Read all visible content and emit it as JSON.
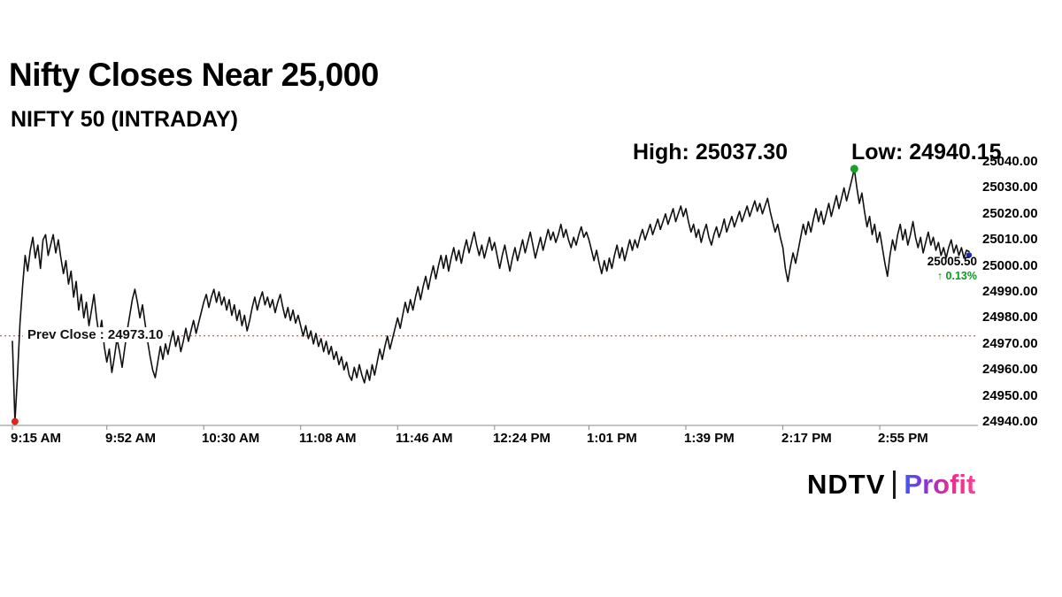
{
  "header": {
    "title": "Nifty Closes Near 25,000",
    "subtitle": "NIFTY 50 (INTRADAY)"
  },
  "stats": {
    "high_label": "High: 25037.30",
    "low_label": "Low: 24940.15"
  },
  "chart_data": {
    "type": "line",
    "title": "NIFTY 50 (INTRADAY)",
    "x_unit": "minutes since 09:15 AM",
    "x_ticks": [
      "9:15 AM",
      "9:52 AM",
      "10:30 AM",
      "11:08 AM",
      "11:46 AM",
      "12:24 PM",
      "1:01 PM",
      "1:39 PM",
      "2:17 PM",
      "2:55 PM"
    ],
    "x_tick_minutes": [
      0,
      37,
      75,
      113,
      151,
      189,
      226,
      264,
      302,
      340
    ],
    "xlim_minutes": [
      0,
      375
    ],
    "y_ticks": [
      25040,
      25030,
      25020,
      25010,
      25000,
      24990,
      24980,
      24970,
      24960,
      24950,
      24940
    ],
    "y_tick_labels": [
      "25040.00",
      "25030.00",
      "25020.00",
      "25010.00",
      "25000.00",
      "24990.00",
      "24980.00",
      "24970.00",
      "24960.00",
      "24950.00",
      "24940.00"
    ],
    "ylim": [
      24940,
      25040
    ],
    "grid": false,
    "high": 25037.3,
    "low": 24940.15,
    "prev_close": 24973.1,
    "prev_close_label": "Prev Close : 24973.10",
    "last_price": 25005.5,
    "last_price_label": "25005.50",
    "change_label": "↑ 0.13%",
    "colors": {
      "line": "#111111",
      "prev_close_line": "#dd6a5c",
      "axis": "#8a8a8a",
      "change_up": "#0a9b1d",
      "low_marker": "#e1251b",
      "high_marker": "#17a02b",
      "last_marker": "#1b2bb0"
    },
    "series": [
      {
        "name": "NIFTY 50",
        "minute_step": 1,
        "prices": [
          24971,
          24940.15,
          24958,
          24978,
          24992,
          25004,
          24998,
          25006,
          25011,
          25003,
          25008,
          24999,
          25010,
          25012,
          25004,
          25008,
          25012,
          25005,
          25010,
          25003,
          24997,
          25002,
          24993,
          24998,
          24988,
          24994,
          24983,
          24989,
          24980,
          24986,
          24977,
          24983,
          24989,
          24980,
          24973,
          24979,
          24969,
          24963,
          24968,
          24959,
          24965,
          24972,
          24967,
          24961,
          24968,
          24975,
          24981,
          24987,
          24991,
          24986,
          24980,
          24985,
          24978,
          24971,
          24965,
          24960,
          24957,
          24963,
          24969,
          24964,
          24970,
          24966,
          24971,
          24975,
          24969,
          24973,
          24967,
          24971,
          24976,
          24971,
          24975,
          24979,
          24974,
          24978,
          24982,
          24986,
          24989,
          24984,
          24988,
          24991,
          24986,
          24990,
          24985,
          24988,
          24983,
          24987,
          24981,
          24985,
          24979,
          24983,
          24977,
          24981,
          24975,
          24979,
          24984,
          24988,
          24983,
          24987,
          24990,
          24985,
          24988,
          24984,
          24987,
          24982,
          24986,
          24989,
          24984,
          24980,
          24984,
          24979,
          24983,
          24978,
          24981,
          24977,
          24973,
          24977,
          24972,
          24975,
          24970,
          24974,
          24969,
          24972,
          24967,
          24971,
          24966,
          24969,
          24964,
          24967,
          24962,
          24965,
          24960,
          24963,
          24958,
          24956,
          24961,
          24957,
          24962,
          24958,
          24955,
          24960,
          24956,
          24962,
          24958,
          24963,
          24968,
          24964,
          24969,
          24973,
          24968,
          24972,
          24976,
          24980,
          24976,
          24981,
          24986,
          24982,
          24987,
          24983,
          24988,
          24992,
          24987,
          24992,
          24996,
          24991,
          24996,
          25000,
          24995,
          25000,
          25004,
          24999,
          25004,
          24998,
          25003,
          25007,
          25002,
          25006,
          25001,
          25006,
          25010,
          25005,
          25009,
          25013,
          25008,
          25004,
          25008,
          25003,
          25007,
          25011,
          25006,
          25009,
          25004,
          24999,
          25004,
          25008,
          25003,
          24998,
          25003,
          25007,
          25002,
          25006,
          25010,
          25005,
          25009,
          25013,
          25008,
          25003,
          25007,
          25011,
          25006,
          25010,
          25014,
          25010,
          25013,
          25009,
          25012,
          25016,
          25011,
          25014,
          25010,
          25007,
          25011,
          25008,
          25012,
          25015,
          25011,
          25013,
          25010,
          25006,
          25002,
          25006,
          25001,
          24997,
          25002,
          24998,
          25003,
          24999,
          25004,
          25008,
          25003,
          25007,
          25002,
          25006,
          25010,
          25006,
          25010,
          25007,
          25011,
          25014,
          25010,
          25013,
          25016,
          25012,
          25015,
          25018,
          25014,
          25017,
          25020,
          25016,
          25019,
          25022,
          25017,
          25020,
          25023,
          25019,
          25022,
          25017,
          25013,
          25016,
          25011,
          25014,
          25009,
          25013,
          25016,
          25011,
          25008,
          25012,
          25015,
          25011,
          25014,
          25018,
          25013,
          25016,
          25019,
          25015,
          25018,
          25021,
          25017,
          25020,
          25023,
          25019,
          25022,
          25025,
          25021,
          25024,
          25020,
          25023,
          25026,
          25021,
          25017,
          25013,
          25016,
          25011,
          25007,
          24999,
          24994,
          25000,
          25005,
          25001,
          25006,
          25011,
          25016,
          25012,
          25017,
          25013,
          25018,
          25022,
          25017,
          25021,
          25016,
          25020,
          25024,
          25019,
          25023,
          25027,
          25022,
          25026,
          25030,
          25025,
          25029,
          25033,
          25037.3,
          25030,
          25024,
          25028,
          25021,
          25015,
          25019,
          25012,
          25016,
          25009,
          25013,
          25007,
          25001,
          24996,
          25004,
          25010,
          25006,
          25012,
          25016,
          25010,
          25014,
          25008,
          25012,
          25017,
          25011,
          25007,
          25011,
          25005,
          25009,
          25013,
          25008,
          25011,
          25006,
          25009,
          25004,
          25007,
          25003,
          25007,
          25010,
          25005,
          25008,
          25004,
          25007,
          25003,
          25006,
          25005.5
        ]
      }
    ]
  },
  "footer": {
    "brand_ndtv": "NDTV",
    "brand_profit": "Profit",
    "profit_gradient": [
      "#3d5af1",
      "#8b30d9",
      "#e62e8a",
      "#ff3d9a"
    ]
  }
}
